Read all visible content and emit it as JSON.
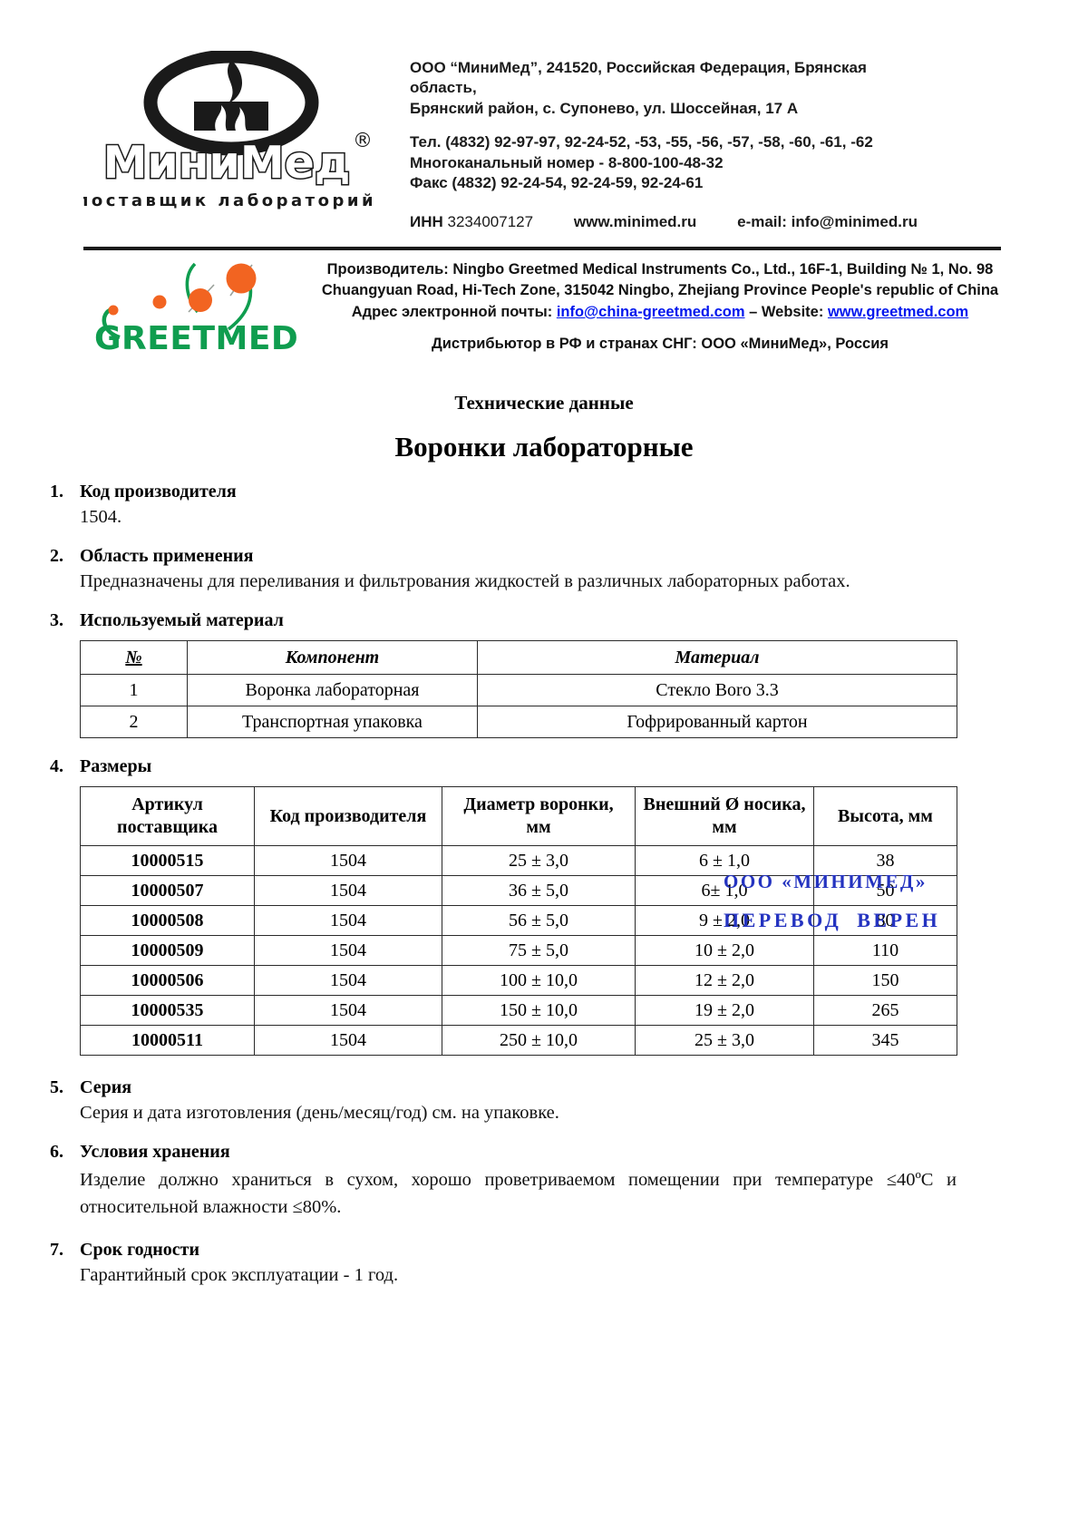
{
  "header": {
    "logo": {
      "brand": "МиниМед",
      "reg_mark": "®",
      "tagline": "поставщик лабораторий"
    },
    "address_line1": "ООО “МиниМед”, 241520, Российская Федерация, Брянская область,",
    "address_line2": "Брянский район, с. Супонево, ул. Шоссейная, 17 А",
    "phone": "Тел. (4832) 92-97-97, 92-24-52, -53, -55, -56, -57, -58, -60, -61, -62",
    "multichannel": "Многоканальный номер - 8-800-100-48-32",
    "fax": "Факс (4832) 92-24-54, 92-24-59, 92-24-61",
    "inn_label": "ИНН",
    "inn_value": "3234007127",
    "website": "www.minimed.ru",
    "email": "e-mail: info@minimed.ru"
  },
  "manufacturer": {
    "logo_text": "GREETMED",
    "line1": "Производитель: Ningbo Greetmed Medical Instruments Co., Ltd., 16F-1, Building № 1, No. 98",
    "line2": "Chuangyuan Road, Hi-Tech Zone, 315042 Ningbo, Zhejiang Province People's republic of China",
    "email_label": "Адрес электронной почты:",
    "email_link": "info@china-greetmed.com",
    "separator": "–",
    "website_label": "Website:",
    "website_link": "www.greetmed.com",
    "distributor": "Дистрибьютор в РФ и странах СНГ: ООО «МиниМед», Россия"
  },
  "doc": {
    "tech_header": "Технические данные",
    "title": "Воронки лабораторные"
  },
  "sections": {
    "s1": {
      "num": "1.",
      "title": "Код производителя",
      "body": "1504."
    },
    "s2": {
      "num": "2.",
      "title": "Область применения",
      "body": "Предназначены для переливания и фильтрования жидкостей в различных лабораторных работах."
    },
    "s3": {
      "num": "3.",
      "title": "Используемый материал"
    },
    "s4": {
      "num": "4.",
      "title": "Размеры"
    },
    "s5": {
      "num": "5.",
      "title": "Серия",
      "body": "Серия и дата изготовления (день/месяц/год) см. на упаковке."
    },
    "s6": {
      "num": "6.",
      "title": "Условия хранения",
      "body": "Изделие должно храниться в сухом, хорошо проветриваемом помещении при температуре ≤40ºС и относительной влажности ≤80%."
    },
    "s7": {
      "num": "7.",
      "title": "Срок годности",
      "body": "Гарантийный срок эксплуатации - 1 год."
    }
  },
  "materials_table": {
    "headers": [
      "№",
      "Компонент",
      "Материал"
    ],
    "rows": [
      [
        "1",
        "Воронка лабораторная",
        "Стекло Boro 3.3"
      ],
      [
        "2",
        "Транспортная упаковка",
        "Гофрированный картон"
      ]
    ]
  },
  "sizes_table": {
    "headers": [
      "Артикул поставщика",
      "Код производителя",
      "Диаметр воронки, мм",
      "Внешний Ø носика, мм",
      "Высота, мм"
    ],
    "rows": [
      [
        "10000515",
        "1504",
        "25 ± 3,0",
        "6 ± 1,0",
        "38"
      ],
      [
        "10000507",
        "1504",
        "36 ± 5,0",
        "6± 1,0",
        "50"
      ],
      [
        "10000508",
        "1504",
        "56 ± 5,0",
        "9 ± 2,0",
        "80"
      ],
      [
        "10000509",
        "1504",
        "75 ± 5,0",
        "10 ± 2,0",
        "110"
      ],
      [
        "10000506",
        "1504",
        "100 ± 10,0",
        "12 ± 2,0",
        "150"
      ],
      [
        "10000535",
        "1504",
        "150 ± 10,0",
        "19 ± 2,0",
        "265"
      ],
      [
        "10000511",
        "1504",
        "250 ± 10,0",
        "25 ± 3,0",
        "345"
      ]
    ]
  },
  "stamp": {
    "line1": "ООО «МИНИМЕД»",
    "line2": "ПЕРЕВОД ВЕРЕН"
  },
  "colors": {
    "stamp_blue": "#2433c0",
    "link_blue": "#0016ee",
    "greetmed_green": "#0f9d4f",
    "greetmed_orange": "#f26421",
    "logo_black": "#1a1a1a"
  }
}
